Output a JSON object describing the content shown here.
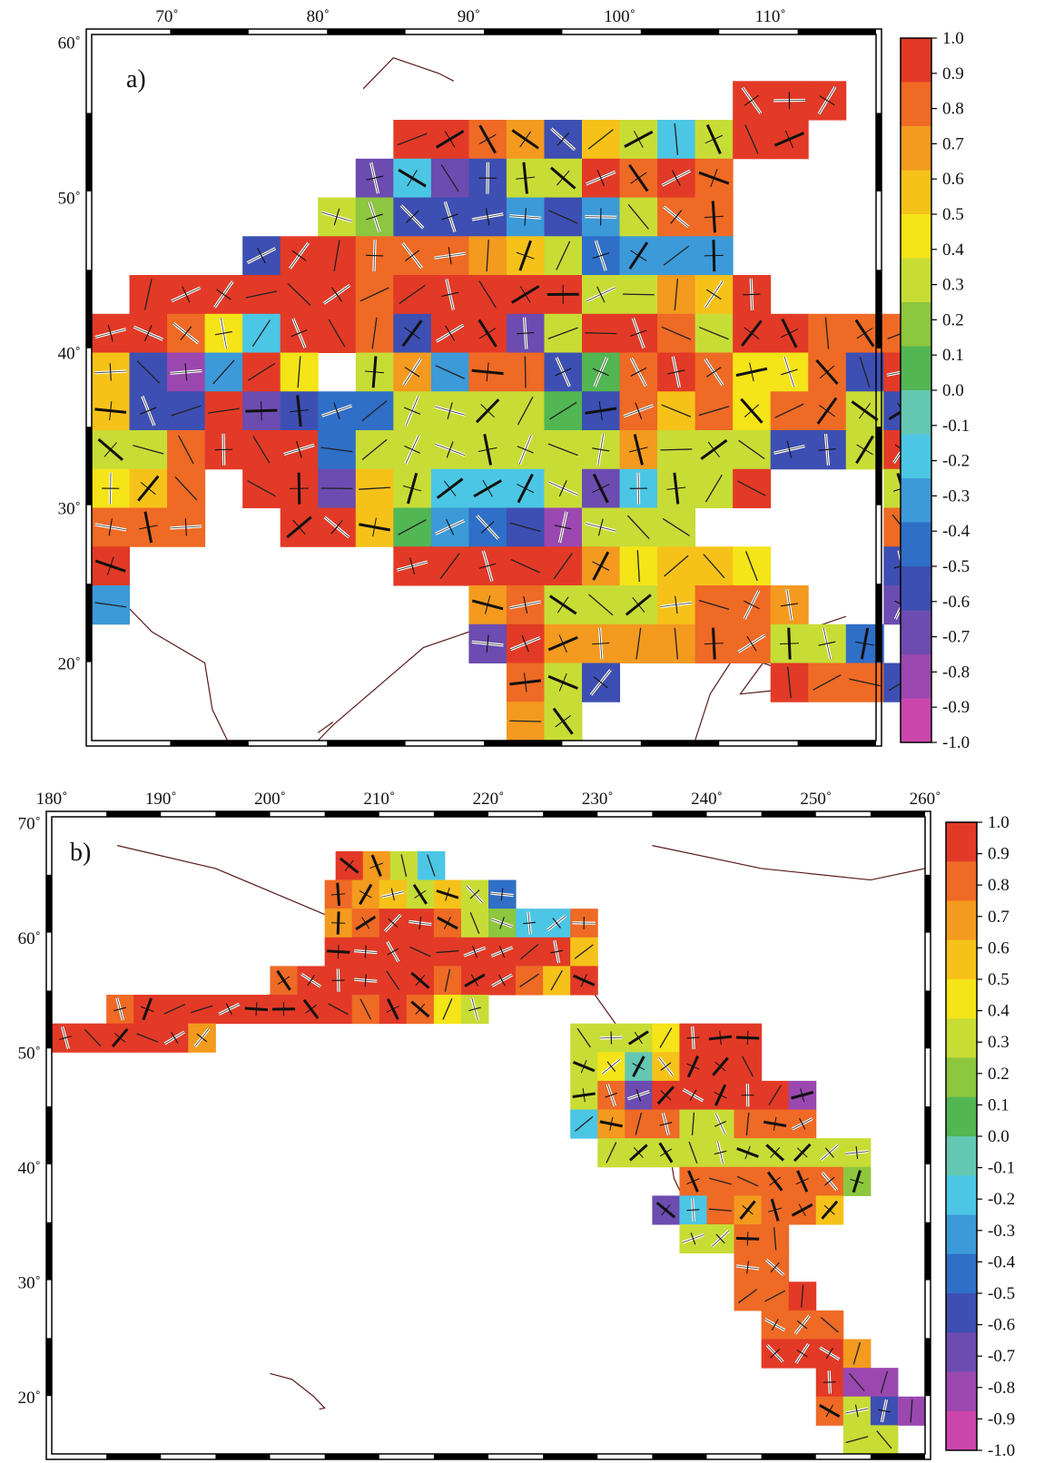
{
  "colors": {
    "coast": "#5a1a1a",
    "frame": "#000000",
    "colorbar": [
      "#cc45ac",
      "#9a48b0",
      "#6c4cb0",
      "#3d4fb2",
      "#2f6fc7",
      "#3c9ad8",
      "#4cc6e5",
      "#64c7b2",
      "#52b653",
      "#8dc63f",
      "#c8dc36",
      "#f4e418",
      "#f6c21a",
      "#f39a1f",
      "#ee6a25",
      "#e23a27"
    ]
  },
  "panel_a": {
    "label": "a)",
    "lon_ticks": [
      "70˚",
      "80˚",
      "90˚",
      "100˚",
      "110˚"
    ],
    "lat_ticks": [
      "60˚",
      "50˚",
      "40˚",
      "30˚",
      "20˚"
    ],
    "colorbar_ticks": [
      "1.0",
      "0.9",
      "0.8",
      "0.7",
      "0.6",
      "0.5",
      "0.4",
      "0.3",
      "0.2",
      "0.1",
      "0.0",
      "-0.1",
      "-0.2",
      "-0.3",
      "-0.4",
      "-0.5",
      "-0.6",
      "-0.7",
      "-0.8",
      "-0.9",
      "-1.0"
    ]
  },
  "panel_b": {
    "label": "b)",
    "lon_ticks": [
      "180˚",
      "190˚",
      "200˚",
      "210˚",
      "220˚",
      "230˚",
      "240˚",
      "250˚",
      "260˚"
    ],
    "lat_ticks": [
      "70˚",
      "60˚",
      "50˚",
      "40˚",
      "30˚",
      "20˚"
    ],
    "colorbar_ticks": [
      "1.0",
      "0.9",
      "0.8",
      "0.7",
      "0.6",
      "0.5",
      "0.4",
      "0.3",
      "0.2",
      "0.1",
      "0.0",
      "-0.1",
      "-0.2",
      "-0.3",
      "-0.4",
      "-0.5",
      "-0.6",
      "-0.7",
      "-0.8",
      "-0.9",
      "-1.0"
    ]
  },
  "chart_data": [
    {
      "type": "heatmap",
      "panel": "a)",
      "xlim": [
        65,
        117
      ],
      "ylim": [
        15,
        60.5
      ],
      "cell_size_deg": 2.5,
      "value_range": [
        -1.0,
        1.0
      ],
      "cells_note_rows_from_north": [
        {
          "lat": 55,
          "start_lon": 107.5,
          "values": [
            0.95,
            0.95,
            0.95
          ]
        },
        {
          "lat": 52.5,
          "start_lon": 85,
          "values": [
            0.95,
            0.95,
            0.85,
            0.65,
            -0.55,
            0.55,
            0.35,
            -0.25,
            0.35,
            0.95,
            0.95
          ]
        },
        {
          "lat": 50,
          "start_lon": 82.5,
          "values": [
            -0.65,
            -0.25,
            -0.75,
            -0.55,
            0.35,
            0.35,
            0.95,
            0.85,
            0.95,
            0.85
          ]
        },
        {
          "lat": 47.5,
          "start_lon": 80,
          "values": [
            0.35,
            0.15,
            -0.55,
            -0.55,
            -0.55,
            -0.35,
            -0.55,
            -0.35,
            0.35,
            0.85,
            0.75
          ]
        },
        {
          "lat": 45,
          "start_lon": 75,
          "values": [
            -0.55,
            0.95,
            0.95,
            0.85,
            0.85,
            0.85,
            0.65,
            0.55,
            0.35,
            -0.45,
            -0.35,
            -0.35,
            -0.35
          ]
        },
        {
          "lat": 42.5,
          "start_lon": 67.5,
          "values": [
            0.95,
            0.95,
            0.95,
            0.95,
            0.95,
            0.95,
            0.85,
            0.95,
            0.95,
            0.95,
            0.95,
            0.95,
            0.35,
            0.35,
            0.65,
            0.55,
            0.95
          ]
        },
        {
          "lat": 40,
          "start_lon": 65,
          "values": [
            0.95,
            0.95,
            0.85,
            0.45,
            -0.15,
            0.95,
            0.95,
            0.85,
            -0.55,
            0.95,
            0.95,
            -0.75,
            0.25,
            0.95,
            0.95,
            0.75,
            0.35,
            0.95,
            0.95,
            0.85,
            0.85,
            0.85
          ]
        },
        {
          "lat": 37.5,
          "start_lon": 65,
          "values": [
            0.55,
            -0.55,
            -0.85,
            -0.35,
            0.95,
            0.45,
            null,
            0.35,
            0.65,
            -0.35,
            0.85,
            0.75,
            -0.55,
            0.05,
            0.85,
            0.95,
            0.85,
            0.45,
            0.45,
            0.85,
            -0.55,
            0.95
          ]
        },
        {
          "lat": 35,
          "start_lon": 65,
          "values": [
            0.55,
            -0.55,
            -0.55,
            0.95,
            -0.65,
            -0.55,
            -0.45,
            -0.45,
            0.35,
            0.35,
            0.35,
            0.35,
            0.05,
            -0.55,
            0.85,
            0.55,
            0.85,
            0.45,
            0.85,
            0.85,
            0.35,
            -0.55
          ]
        },
        {
          "lat": 32.5,
          "start_lon": 65,
          "values": [
            0.35,
            0.35,
            0.85,
            0.95,
            0.95,
            0.95,
            -0.45,
            0.35,
            0.35,
            0.35,
            0.35,
            0.35,
            0.35,
            0.35,
            0.65,
            0.35,
            0.35,
            0.35,
            -0.55,
            -0.55,
            0.35,
            0.95
          ]
        },
        {
          "lat": 30,
          "start_lon": 65,
          "values": [
            0.45,
            0.55,
            0.85,
            null,
            0.95,
            0.95,
            -0.65,
            0.55,
            0.35,
            -0.25,
            -0.25,
            -0.15,
            0.35,
            -0.75,
            -0.25,
            0.35,
            0.35,
            0.95,
            null,
            null,
            null,
            0.35
          ]
        },
        {
          "lat": 27.5,
          "start_lon": 65,
          "values": [
            0.85,
            0.75,
            0.85,
            null,
            null,
            0.95,
            0.95,
            0.55,
            0.05,
            -0.35,
            -0.45,
            -0.55,
            -0.85,
            0.35,
            0.35,
            0.35,
            null,
            null,
            null,
            null,
            null,
            0.85
          ]
        },
        {
          "lat": 25,
          "start_lon": 65,
          "values": [
            0.95,
            null,
            null,
            null,
            null,
            null,
            null,
            null,
            0.95,
            0.95,
            0.95,
            0.95,
            0.95,
            0.65,
            0.45,
            0.55,
            0.55,
            0.45,
            null,
            null,
            null,
            -0.55
          ]
        },
        {
          "lat": 22.5,
          "start_lon": 65,
          "values": [
            -0.35,
            null,
            null,
            null,
            null,
            null,
            null,
            null,
            null,
            null,
            0.65,
            0.85,
            0.35,
            0.35,
            0.35,
            0.55,
            0.85,
            0.75,
            0.65,
            null,
            null,
            -0.65
          ]
        },
        {
          "lat": 20,
          "start_lon": 90,
          "values": [
            -0.65,
            0.95,
            0.65,
            0.65,
            0.65,
            0.65,
            0.85,
            0.75,
            0.35,
            0.35,
            -0.45
          ]
        },
        {
          "lat": 17.5,
          "start_lon": 92.5,
          "values": [
            0.85,
            0.35,
            -0.55,
            null,
            null,
            null,
            null,
            0.95,
            0.85,
            0.85,
            -0.55
          ]
        },
        {
          "lat": 15,
          "start_lon": 92.5,
          "values": [
            0.65,
            0.35
          ]
        }
      ]
    },
    {
      "type": "heatmap",
      "panel": "b)",
      "xlim": [
        180,
        260
      ],
      "ylim": [
        15,
        70.5
      ],
      "cell_size_deg": 2.5,
      "value_range": [
        -1.0,
        1.0
      ]
    }
  ]
}
